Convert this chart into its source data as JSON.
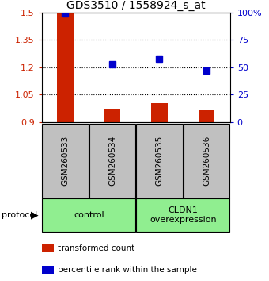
{
  "title": "GDS3510 / 1558924_s_at",
  "samples": [
    "GSM260533",
    "GSM260534",
    "GSM260535",
    "GSM260536"
  ],
  "red_values": [
    1.497,
    0.972,
    1.003,
    0.968
  ],
  "blue_values": [
    99,
    53,
    58,
    47
  ],
  "ylim_left": [
    0.9,
    1.5
  ],
  "ylim_right": [
    0,
    100
  ],
  "yticks_left": [
    0.9,
    1.05,
    1.2,
    1.35,
    1.5
  ],
  "ytick_labels_left": [
    "0.9",
    "1.05",
    "1.2",
    "1.35",
    "1.5"
  ],
  "yticks_right": [
    0,
    25,
    50,
    75,
    100
  ],
  "ytick_labels_right": [
    "0",
    "25",
    "50",
    "75",
    "100%"
  ],
  "groups": [
    {
      "label": "control",
      "samples": [
        0,
        1
      ],
      "color": "#90ee90"
    },
    {
      "label": "CLDN1\noverexpression",
      "samples": [
        2,
        3
      ],
      "color": "#90ee90"
    }
  ],
  "red_color": "#cc2200",
  "blue_color": "#0000cc",
  "bar_baseline": 0.9,
  "grid_ticks": [
    1.05,
    1.2,
    1.35
  ],
  "sample_box_color": "#c0c0c0",
  "legend_items": [
    {
      "color": "#cc2200",
      "label": "transformed count"
    },
    {
      "color": "#0000cc",
      "label": "percentile rank within the sample"
    }
  ],
  "protocol_label": "protocol",
  "bar_width": 0.35
}
